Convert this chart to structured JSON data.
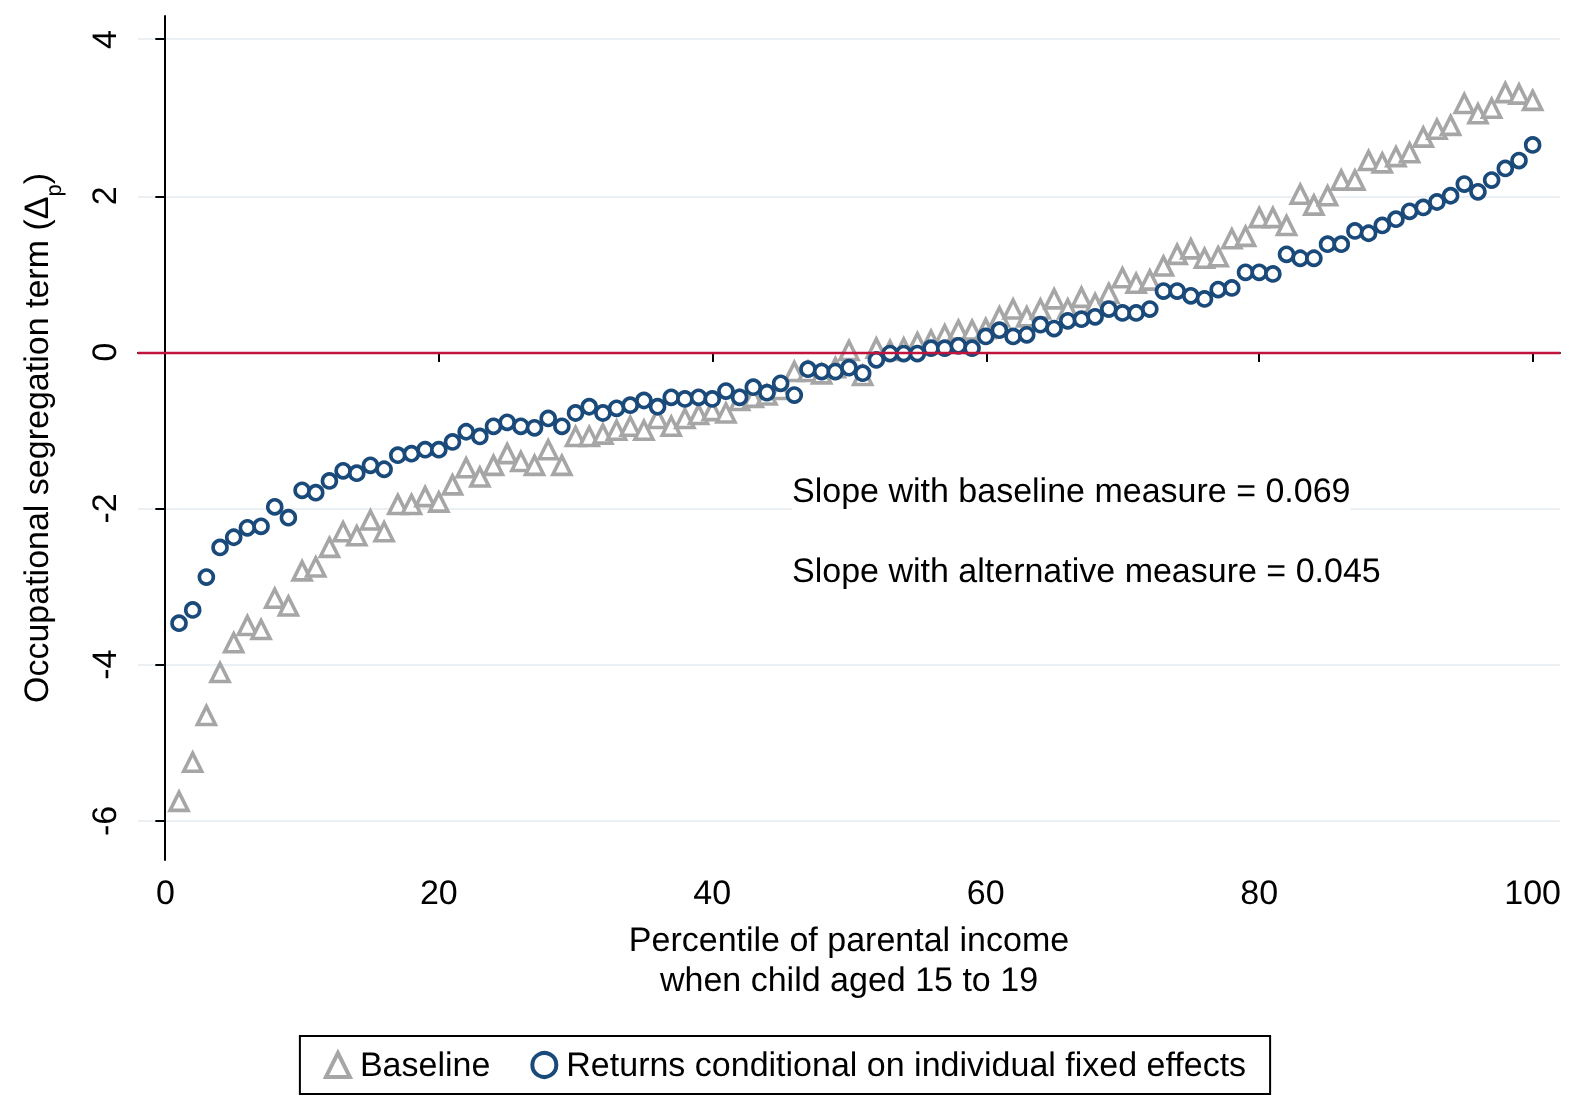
{
  "chart_data": {
    "type": "scatter",
    "xlabel": "Percentile of parental income\nwhen child aged 15 to 19",
    "ylabel": "Occupational segregation term (Δ$_{p}$)",
    "x": [
      1,
      2,
      3,
      4,
      5,
      6,
      7,
      8,
      9,
      10,
      11,
      12,
      13,
      14,
      15,
      16,
      17,
      18,
      19,
      20,
      21,
      22,
      23,
      24,
      25,
      26,
      27,
      28,
      29,
      30,
      31,
      32,
      33,
      34,
      35,
      36,
      37,
      38,
      39,
      40,
      41,
      42,
      43,
      44,
      45,
      46,
      47,
      48,
      49,
      50,
      51,
      52,
      53,
      54,
      55,
      56,
      57,
      58,
      59,
      60,
      61,
      62,
      63,
      64,
      65,
      66,
      67,
      68,
      69,
      70,
      71,
      72,
      73,
      74,
      75,
      76,
      77,
      78,
      79,
      80,
      81,
      82,
      83,
      84,
      85,
      86,
      87,
      88,
      89,
      90,
      91,
      92,
      93,
      94,
      95,
      96,
      97,
      98,
      99,
      100
    ],
    "series": [
      {
        "name": "Baseline",
        "color": "#a6a6a6",
        "marker": "triangle",
        "values": [
          -5.75,
          -5.25,
          -4.65,
          -4.1,
          -3.72,
          -3.5,
          -3.55,
          -3.15,
          -3.25,
          -2.8,
          -2.75,
          -2.5,
          -2.3,
          -2.35,
          -2.15,
          -2.3,
          -1.95,
          -1.95,
          -1.85,
          -1.92,
          -1.7,
          -1.48,
          -1.6,
          -1.45,
          -1.3,
          -1.4,
          -1.45,
          -1.25,
          -1.45,
          -1.08,
          -1.08,
          -1.05,
          -1.0,
          -0.95,
          -1.0,
          -0.85,
          -0.95,
          -0.85,
          -0.8,
          -0.75,
          -0.78,
          -0.62,
          -0.58,
          -0.55,
          -0.48,
          -0.25,
          -0.25,
          -0.28,
          -0.2,
          0.02,
          -0.3,
          0.05,
          0.02,
          0.05,
          0.12,
          0.15,
          0.22,
          0.28,
          0.28,
          0.3,
          0.45,
          0.55,
          0.45,
          0.55,
          0.68,
          0.55,
          0.7,
          0.62,
          0.75,
          0.95,
          0.88,
          0.92,
          1.1,
          1.25,
          1.32,
          1.2,
          1.22,
          1.45,
          1.48,
          1.72,
          1.72,
          1.62,
          2.02,
          1.88,
          2.0,
          2.2,
          2.2,
          2.45,
          2.42,
          2.5,
          2.55,
          2.75,
          2.85,
          2.9,
          3.18,
          3.05,
          3.12,
          3.32,
          3.3,
          3.22
        ]
      },
      {
        "name": "Returns conditional on individual fixed effects",
        "color": "#1a4a7a",
        "marker": "circle",
        "values": [
          -3.47,
          -3.3,
          -2.88,
          -2.5,
          -2.37,
          -2.25,
          -2.23,
          -1.98,
          -2.12,
          -1.77,
          -1.8,
          -1.65,
          -1.52,
          -1.55,
          -1.45,
          -1.5,
          -1.32,
          -1.3,
          -1.25,
          -1.25,
          -1.15,
          -1.02,
          -1.08,
          -0.95,
          -0.9,
          -0.95,
          -0.97,
          -0.85,
          -0.95,
          -0.78,
          -0.7,
          -0.78,
          -0.72,
          -0.68,
          -0.62,
          -0.7,
          -0.58,
          -0.6,
          -0.58,
          -0.6,
          -0.5,
          -0.58,
          -0.45,
          -0.52,
          -0.4,
          -0.55,
          -0.22,
          -0.25,
          -0.25,
          -0.2,
          -0.27,
          -0.1,
          -0.02,
          -0.02,
          -0.02,
          0.05,
          0.05,
          0.08,
          0.05,
          0.2,
          0.28,
          0.2,
          0.22,
          0.35,
          0.3,
          0.4,
          0.42,
          0.45,
          0.55,
          0.5,
          0.5,
          0.55,
          0.78,
          0.78,
          0.72,
          0.68,
          0.8,
          0.82,
          1.02,
          1.02,
          1.0,
          1.25,
          1.2,
          1.2,
          1.38,
          1.38,
          1.55,
          1.52,
          1.62,
          1.7,
          1.8,
          1.85,
          1.92,
          2.0,
          2.15,
          2.05,
          2.2,
          2.35,
          2.45,
          2.65
        ]
      }
    ],
    "xlim": [
      -2,
      102
    ],
    "xticks": [
      0,
      20,
      40,
      60,
      80,
      100
    ],
    "ylim": [
      -6.5,
      4.3
    ],
    "yticks": [
      -6,
      -4,
      -2,
      0,
      2,
      4
    ],
    "ref_lines": [
      {
        "axis": "y",
        "value": 0,
        "color": "#c0143c"
      }
    ],
    "annotations": [
      "Slope with baseline measure = 0.069",
      "Slope with alternative measure = 0.045"
    ],
    "grid": "y",
    "legend": "bottom"
  }
}
